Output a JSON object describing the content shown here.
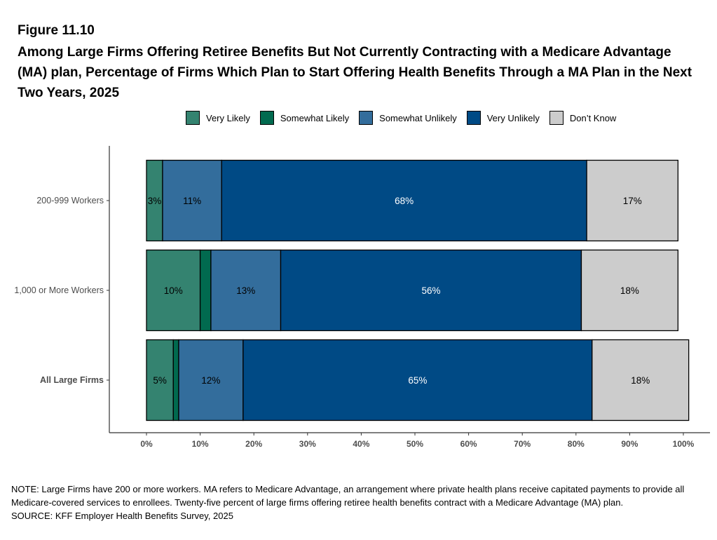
{
  "figure_label": "Figure 11.10",
  "title": "Among Large Firms Offering Retiree Benefits But Not Currently Contracting with a Medicare Advantage (MA) plan, Percentage of Firms Which Plan to Start Offering Health Benefits Through a MA Plan in the Next Two Years, 2025",
  "note": "NOTE: Large Firms have 200 or more workers.  MA refers to Medicare Advantage, an arrangement where private health plans receive capitated payments to provide all Medicare-covered services to enrollees.  Twenty-five percent of large firms offering retiree health benefits contract with a Medicare Advantage (MA) plan.",
  "source": "SOURCE: KFF Employer Health Benefits Survey, 2025",
  "chart_data": {
    "type": "bar",
    "orientation": "horizontal",
    "stacked": true,
    "legend_position": "top",
    "grid": false,
    "xlim": [
      0,
      100
    ],
    "x_ticks": [
      "0%",
      "10%",
      "20%",
      "30%",
      "40%",
      "50%",
      "60%",
      "70%",
      "80%",
      "90%",
      "100%"
    ],
    "categories": [
      "200-999 Workers",
      "1,000 or More Workers",
      "All Large Firms"
    ],
    "series": [
      {
        "name": "Very Likely",
        "color": "#348370",
        "label_color": "#000000",
        "values": [
          3,
          10,
          5
        ],
        "labels": [
          "3%",
          "10%",
          "5%"
        ]
      },
      {
        "name": "Somewhat Likely",
        "color": "#016a4f",
        "label_color": "#000000",
        "values": [
          0,
          2,
          1
        ],
        "labels": [
          "",
          "",
          ""
        ]
      },
      {
        "name": "Somewhat Unlikely",
        "color": "#336d9c",
        "label_color": "#000000",
        "values": [
          11,
          13,
          12
        ],
        "labels": [
          "11%",
          "13%",
          "12%"
        ]
      },
      {
        "name": "Very Unlikely",
        "color": "#004a85",
        "label_color": "#ffffff",
        "values": [
          68,
          56,
          65
        ],
        "labels": [
          "68%",
          "56%",
          "65%"
        ]
      },
      {
        "name": "Don’t Know",
        "color": "#cccccc",
        "label_color": "#000000",
        "values": [
          17,
          18,
          18
        ],
        "labels": [
          "17%",
          "18%",
          "18%"
        ]
      }
    ],
    "bold_categories": [
      "All Large Firms"
    ]
  }
}
